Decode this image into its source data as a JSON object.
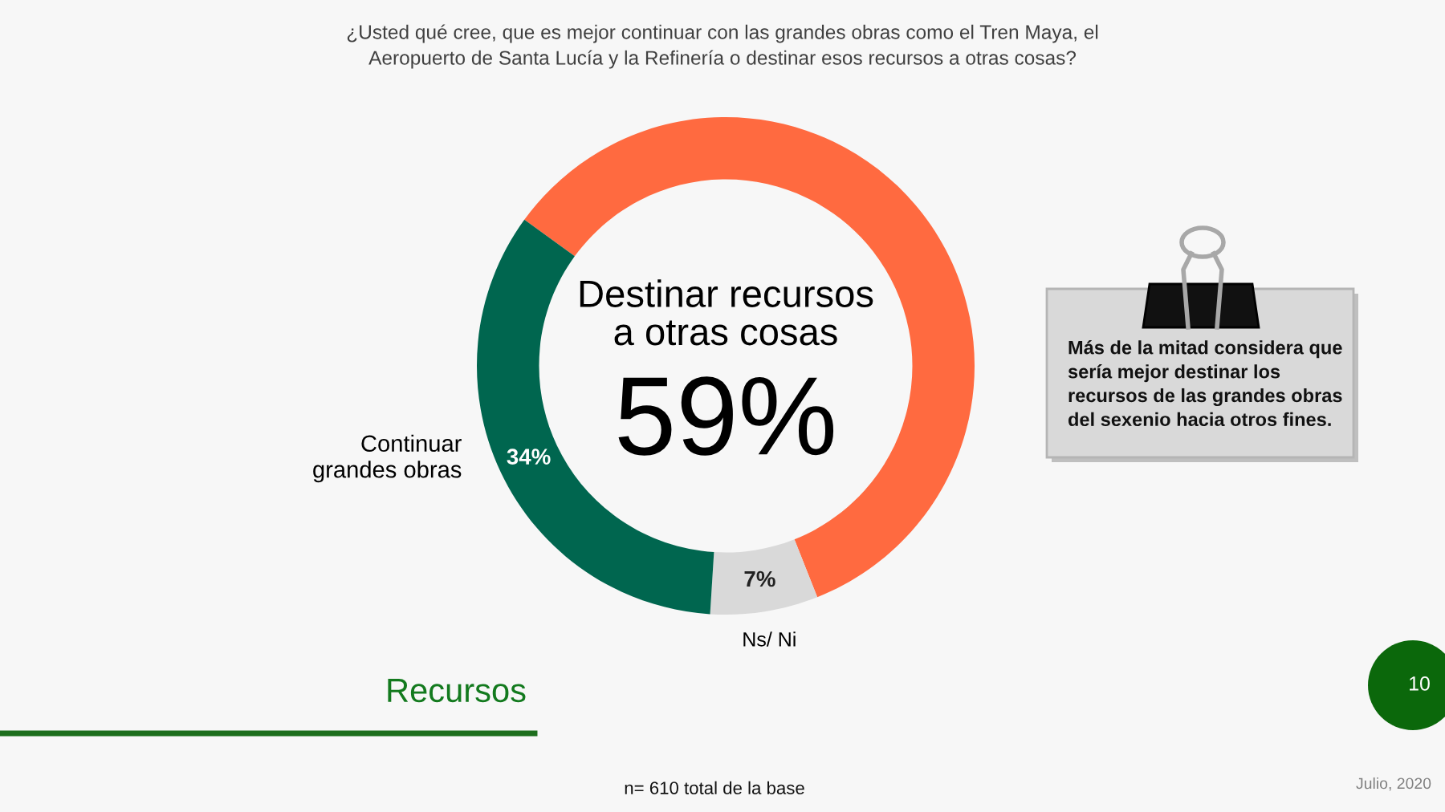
{
  "chart_data": {
    "type": "donut",
    "title": "¿Usted qué cree, que es mejor continuar con las grandes obras como el Tren Maya, el\nAeropuerto de Santa Lucía y la Refinería o destinar esos recursos a otras cosas?",
    "categories": [
      "Destinar recursos\na otras cosas",
      "Ns/ Ni",
      "Continuar\ngrandes obras"
    ],
    "values": [
      59,
      7,
      34
    ],
    "colors": [
      "#ff6a40",
      "#d9d9d9",
      "#00664f"
    ],
    "value_labels": [
      "59%",
      "7%",
      "34%"
    ],
    "annotations": [
      "Más de la mitad considera que\nsería mejor destinar los\nrecursos de las grandes obras\ndel sexenio hacia otros fines.",
      "Recursos",
      "n= 610 total de la base",
      "Julio, 2020",
      "10"
    ]
  }
}
